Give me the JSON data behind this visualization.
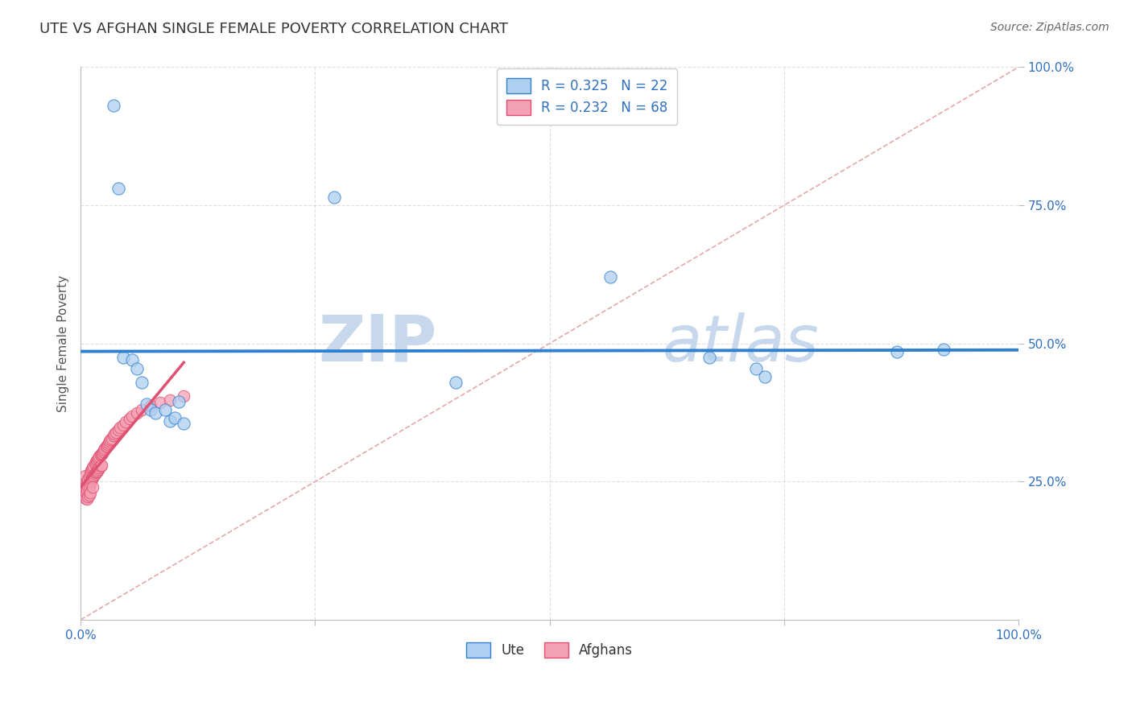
{
  "title": "UTE VS AFGHAN SINGLE FEMALE POVERTY CORRELATION CHART",
  "source_text": "Source: ZipAtlas.com",
  "ylabel": "Single Female Poverty",
  "xlim": [
    0.0,
    1.0
  ],
  "ylim": [
    0.0,
    1.0
  ],
  "legend_blue_r": "R = 0.325",
  "legend_blue_n": "N = 22",
  "legend_pink_r": "R = 0.232",
  "legend_pink_n": "N = 68",
  "blue_color": "#AECFF0",
  "pink_color": "#F4A0B5",
  "blue_line_color": "#3080D0",
  "pink_line_color": "#E05070",
  "ref_line_color": "#E0A0A0",
  "background_color": "#FFFFFF",
  "grid_color": "#CCCCCC",
  "watermark_text": "ZIP atlas",
  "watermark_color": "#C8D8EC",
  "ute_x": [
    0.035,
    0.04,
    0.045,
    0.055,
    0.06,
    0.065,
    0.07,
    0.075,
    0.08,
    0.09,
    0.095,
    0.1,
    0.105,
    0.11,
    0.27,
    0.4,
    0.565,
    0.67,
    0.72,
    0.73,
    0.87,
    0.92
  ],
  "ute_y": [
    0.93,
    0.78,
    0.475,
    0.47,
    0.455,
    0.43,
    0.39,
    0.38,
    0.375,
    0.38,
    0.36,
    0.365,
    0.395,
    0.355,
    0.765,
    0.43,
    0.62,
    0.475,
    0.455,
    0.44,
    0.485,
    0.49
  ],
  "afghan_x": [
    0.005,
    0.005,
    0.005,
    0.006,
    0.006,
    0.007,
    0.007,
    0.007,
    0.008,
    0.008,
    0.008,
    0.009,
    0.009,
    0.009,
    0.01,
    0.01,
    0.01,
    0.011,
    0.011,
    0.012,
    0.012,
    0.013,
    0.013,
    0.013,
    0.014,
    0.014,
    0.015,
    0.015,
    0.016,
    0.016,
    0.017,
    0.017,
    0.018,
    0.018,
    0.019,
    0.019,
    0.02,
    0.02,
    0.021,
    0.021,
    0.022,
    0.022,
    0.023,
    0.024,
    0.025,
    0.026,
    0.027,
    0.028,
    0.029,
    0.03,
    0.031,
    0.032,
    0.033,
    0.035,
    0.036,
    0.038,
    0.04,
    0.042,
    0.045,
    0.048,
    0.052,
    0.055,
    0.06,
    0.065,
    0.075,
    0.085,
    0.095,
    0.11
  ],
  "afghan_y": [
    0.26,
    0.235,
    0.22,
    0.245,
    0.23,
    0.25,
    0.235,
    0.218,
    0.255,
    0.24,
    0.223,
    0.258,
    0.242,
    0.226,
    0.265,
    0.248,
    0.23,
    0.27,
    0.252,
    0.272,
    0.255,
    0.275,
    0.258,
    0.24,
    0.278,
    0.26,
    0.282,
    0.263,
    0.285,
    0.266,
    0.288,
    0.268,
    0.29,
    0.27,
    0.293,
    0.272,
    0.295,
    0.275,
    0.298,
    0.278,
    0.3,
    0.28,
    0.302,
    0.305,
    0.308,
    0.31,
    0.313,
    0.315,
    0.318,
    0.32,
    0.323,
    0.326,
    0.328,
    0.333,
    0.336,
    0.34,
    0.344,
    0.348,
    0.353,
    0.358,
    0.364,
    0.368,
    0.374,
    0.38,
    0.387,
    0.393,
    0.398,
    0.405
  ],
  "title_fontsize": 13,
  "axis_label_fontsize": 11,
  "tick_fontsize": 11,
  "legend_fontsize": 12
}
